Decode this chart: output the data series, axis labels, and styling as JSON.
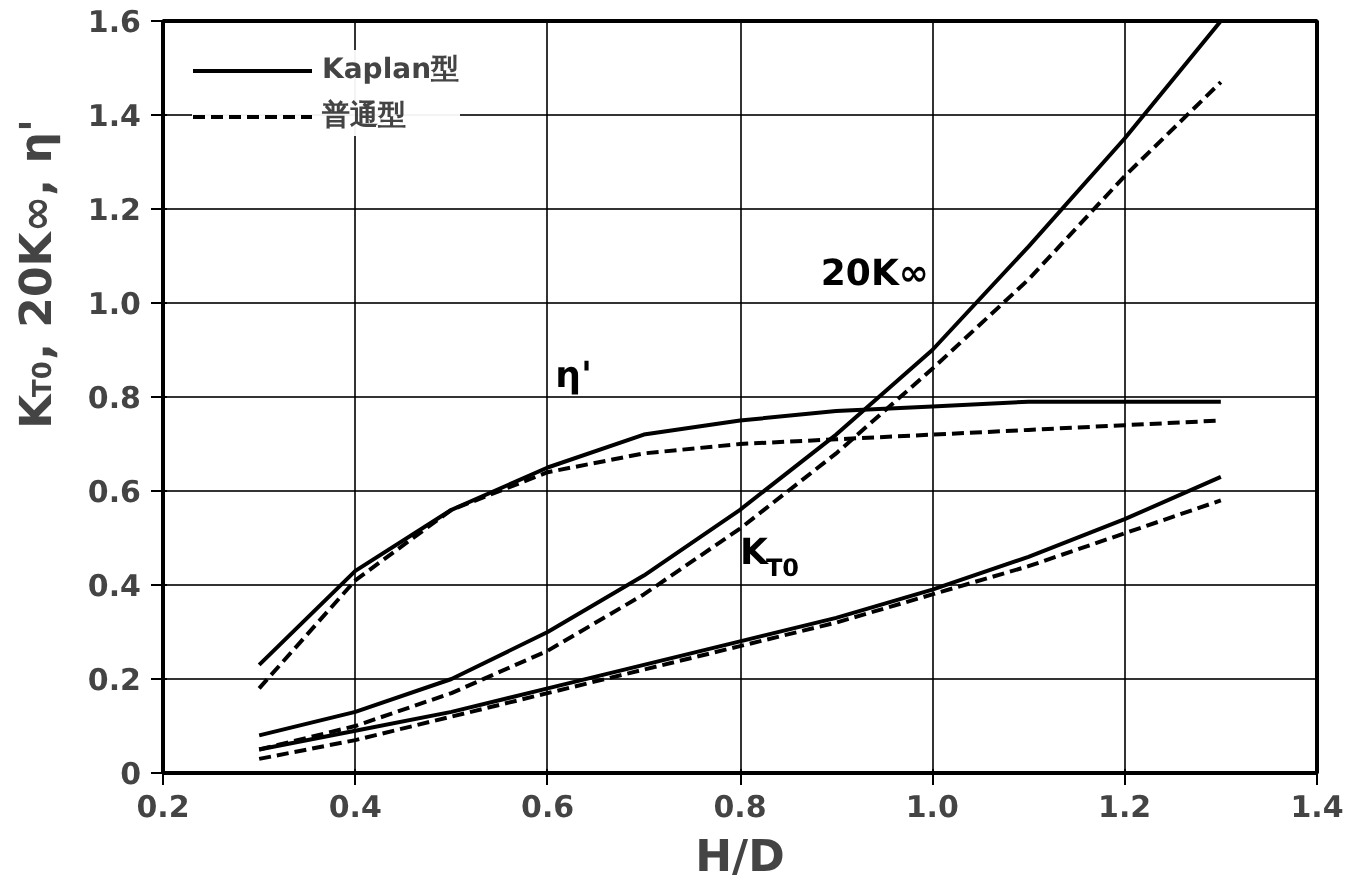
{
  "chart_data": {
    "type": "line",
    "xlabel": "H/D",
    "ylabel": "K$_{T0}$, 20K∞, η'",
    "xlim": [
      0.2,
      1.4
    ],
    "ylim": [
      0,
      1.6
    ],
    "xticks": [
      0.2,
      0.4,
      0.6,
      0.8,
      {
        "value": 1.0,
        "label": "1.0"
      },
      1.2,
      1.4
    ],
    "yticks": [
      0,
      0.2,
      0.4,
      0.6,
      0.8,
      {
        "value": 1.0,
        "label": "1.0"
      },
      1.2,
      1.4,
      1.6
    ],
    "grid": true,
    "legend": "top left",
    "marker": "none",
    "x": [
      0.3,
      0.4,
      0.5,
      0.6,
      0.7,
      0.8,
      0.9,
      1.0,
      1.1,
      1.2,
      1.3
    ],
    "series": [
      {
        "name": "Kaplan型",
        "color": "#000000",
        "line_style": "solid",
        "values": [
          0.08,
          0.13,
          0.2,
          0.3,
          0.42,
          0.56,
          0.72,
          0.9,
          1.12,
          1.35,
          1.6
        ]
      },
      {
        "name": "普通型",
        "color": "#000000",
        "line_style": "dashed",
        "values": [
          0.05,
          0.1,
          0.17,
          0.26,
          0.38,
          0.52,
          0.68,
          0.86,
          1.05,
          1.27,
          1.47
        ]
      },
      {
        "color": "#000000",
        "line_style": "solid",
        "values": [
          0.23,
          0.43,
          0.56,
          0.65,
          0.72,
          0.75,
          0.77,
          0.78,
          0.79,
          0.79,
          0.79
        ]
      },
      {
        "color": "#000000",
        "line_style": "dashed",
        "values": [
          0.18,
          0.41,
          0.56,
          0.64,
          0.68,
          0.7,
          0.71,
          0.72,
          0.73,
          0.74,
          0.75
        ]
      },
      {
        "color": "#000000",
        "line_style": "solid",
        "values": [
          0.05,
          0.09,
          0.13,
          0.18,
          0.23,
          0.28,
          0.33,
          0.39,
          0.46,
          0.54,
          0.63
        ]
      },
      {
        "color": "#000000",
        "line_style": "dashed",
        "values": [
          0.03,
          0.07,
          0.12,
          0.17,
          0.22,
          0.27,
          0.32,
          0.38,
          0.44,
          0.51,
          0.58
        ]
      }
    ],
    "annotations": [
      "20K∞",
      "η'",
      "K$_{T0}$"
    ]
  }
}
